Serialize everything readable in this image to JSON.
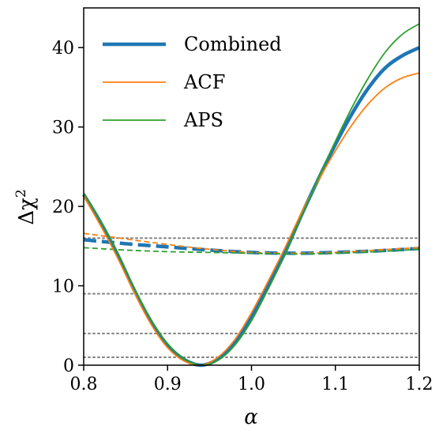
{
  "chart_data": {
    "type": "line",
    "xlabel": "α",
    "ylabel_main": "Δχ",
    "ylabel_sup": "2",
    "xlim": [
      0.8,
      1.2
    ],
    "ylim": [
      0,
      45
    ],
    "xticks": [
      0.8,
      0.9,
      1.0,
      1.1,
      1.2
    ],
    "xtick_labels": [
      "0.8",
      "0.9",
      "1.0",
      "1.1",
      "1.2"
    ],
    "yticks": [
      0,
      10,
      20,
      30,
      40
    ],
    "ytick_labels": [
      "0",
      "10",
      "20",
      "30",
      "40"
    ],
    "legend_position": "top-left",
    "reference_lines": [
      1,
      4,
      9,
      16
    ],
    "reference_line_color": "#808080",
    "series": [
      {
        "name": "Combined",
        "color": "#1f77b4",
        "style": "solid",
        "width": "thick",
        "x": [
          0.8,
          0.82,
          0.84,
          0.86,
          0.88,
          0.9,
          0.92,
          0.94,
          0.96,
          0.98,
          1.0,
          1.02,
          1.04,
          1.06,
          1.08,
          1.1,
          1.12,
          1.14,
          1.16,
          1.18,
          1.2
        ],
        "y": [
          21.5,
          18.0,
          14.0,
          9.5,
          5.5,
          2.5,
          0.7,
          0.0,
          0.8,
          2.8,
          6.0,
          10.0,
          14.2,
          19.0,
          23.5,
          27.8,
          31.7,
          35.0,
          37.5,
          39.0,
          40.0
        ]
      },
      {
        "name": "ACF",
        "color": "#ff7f0e",
        "style": "solid",
        "width": "thin",
        "x": [
          0.8,
          0.82,
          0.84,
          0.86,
          0.88,
          0.9,
          0.92,
          0.94,
          0.96,
          0.98,
          1.0,
          1.02,
          1.04,
          1.06,
          1.08,
          1.1,
          1.12,
          1.14,
          1.16,
          1.18,
          1.2
        ],
        "y": [
          21.3,
          17.6,
          13.6,
          9.2,
          5.2,
          2.2,
          0.5,
          0.0,
          1.0,
          3.2,
          6.6,
          10.6,
          14.8,
          19.3,
          23.3,
          27.0,
          30.3,
          33.0,
          35.0,
          36.2,
          36.8
        ]
      },
      {
        "name": "APS",
        "color": "#2ca02c",
        "style": "solid",
        "width": "thin",
        "x": [
          0.8,
          0.82,
          0.84,
          0.86,
          0.88,
          0.9,
          0.92,
          0.94,
          0.96,
          0.98,
          1.0,
          1.02,
          1.04,
          1.06,
          1.08,
          1.1,
          1.12,
          1.14,
          1.16,
          1.18,
          1.2
        ],
        "y": [
          21.7,
          18.2,
          14.3,
          9.8,
          5.8,
          2.7,
          0.8,
          0.0,
          0.6,
          2.5,
          5.6,
          9.6,
          14.0,
          18.9,
          23.6,
          28.2,
          32.5,
          36.3,
          39.5,
          41.7,
          43.0
        ]
      },
      {
        "name": "",
        "color": "#1f77b4",
        "style": "dashed",
        "width": "thick",
        "x": [
          0.8,
          0.85,
          0.9,
          0.95,
          1.0,
          1.05,
          1.1,
          1.15,
          1.2
        ],
        "y": [
          15.8,
          15.3,
          14.9,
          14.5,
          14.2,
          14.1,
          14.2,
          14.4,
          14.7
        ]
      },
      {
        "name": "",
        "color": "#ff7f0e",
        "style": "dashed",
        "width": "thin",
        "x": [
          0.8,
          0.85,
          0.9,
          0.95,
          1.0,
          1.05,
          1.1,
          1.15,
          1.2
        ],
        "y": [
          16.6,
          15.9,
          15.2,
          14.6,
          14.2,
          14.1,
          14.2,
          14.5,
          14.8
        ]
      },
      {
        "name": "",
        "color": "#2ca02c",
        "style": "dashed",
        "width": "thin",
        "x": [
          0.8,
          0.85,
          0.9,
          0.95,
          1.0,
          1.05,
          1.1,
          1.15,
          1.2
        ],
        "y": [
          14.8,
          14.5,
          14.3,
          14.2,
          14.1,
          14.0,
          14.1,
          14.3,
          14.6
        ]
      }
    ]
  }
}
